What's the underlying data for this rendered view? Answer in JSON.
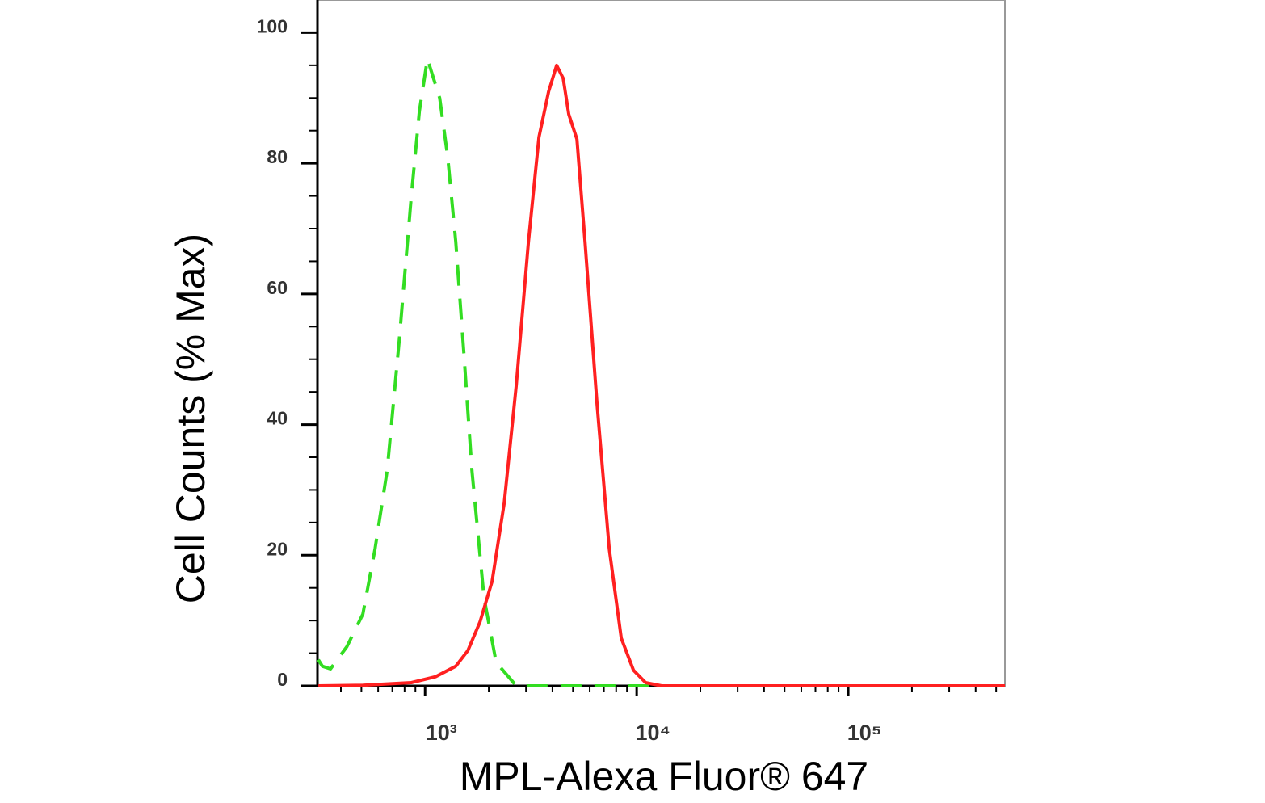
{
  "chart_data": {
    "type": "line",
    "x_label": "MPL-Alexa Fluor® 647",
    "y_label": "Cell Counts (% Max)",
    "xscale": "log",
    "xlim": [
      310,
      550000
    ],
    "ylim": [
      0,
      105
    ],
    "xticks": [
      {
        "value": 1000,
        "label": "10³"
      },
      {
        "value": 10000,
        "label": "10⁴"
      },
      {
        "value": 100000,
        "label": "10⁵"
      }
    ],
    "xminor_ticks": [
      400,
      500,
      600,
      700,
      800,
      900,
      2000,
      3000,
      4000,
      5000,
      6000,
      7000,
      8000,
      9000,
      20000,
      30000,
      40000,
      50000,
      60000,
      70000,
      80000,
      90000,
      200000,
      300000,
      400000,
      500000
    ],
    "yticks": [
      0,
      20,
      40,
      60,
      80,
      100
    ],
    "yminor_ticks": [
      5,
      10,
      15,
      25,
      30,
      35,
      45,
      50,
      55,
      65,
      70,
      75,
      85,
      90,
      95
    ],
    "grid": false,
    "series": [
      {
        "color": "#33dd22",
        "dashed": true,
        "x": [
          313,
          327,
          357,
          427,
          508,
          580,
          662,
          755,
          861,
          940,
          1026,
          1172,
          1279,
          1396,
          1525,
          1665,
          1900,
          2168,
          2698,
          4571,
          11020,
          63900,
          550000
        ],
        "values": [
          4,
          3,
          2.6,
          6,
          11,
          21,
          33,
          53,
          75,
          88,
          96,
          90,
          81,
          68,
          51,
          33,
          13.5,
          3.6,
          0,
          0,
          0,
          0,
          0
        ]
      },
      {
        "color": "#ff2020",
        "dashed": false,
        "x": [
          313,
          508,
          861,
          1121,
          1396,
          1593,
          1818,
          2074,
          2366,
          2698,
          3081,
          3453,
          3837,
          4188,
          4497,
          4777,
          5220,
          5700,
          6505,
          7420,
          8460,
          9660,
          11020,
          13130,
          550000
        ],
        "values": [
          0,
          0.1,
          0.5,
          1.4,
          3,
          5.4,
          9.8,
          16,
          28,
          46,
          68,
          84,
          91,
          95,
          93,
          87.5,
          83.7,
          68,
          43,
          21,
          7.3,
          2.4,
          0.5,
          0,
          0
        ]
      }
    ]
  }
}
